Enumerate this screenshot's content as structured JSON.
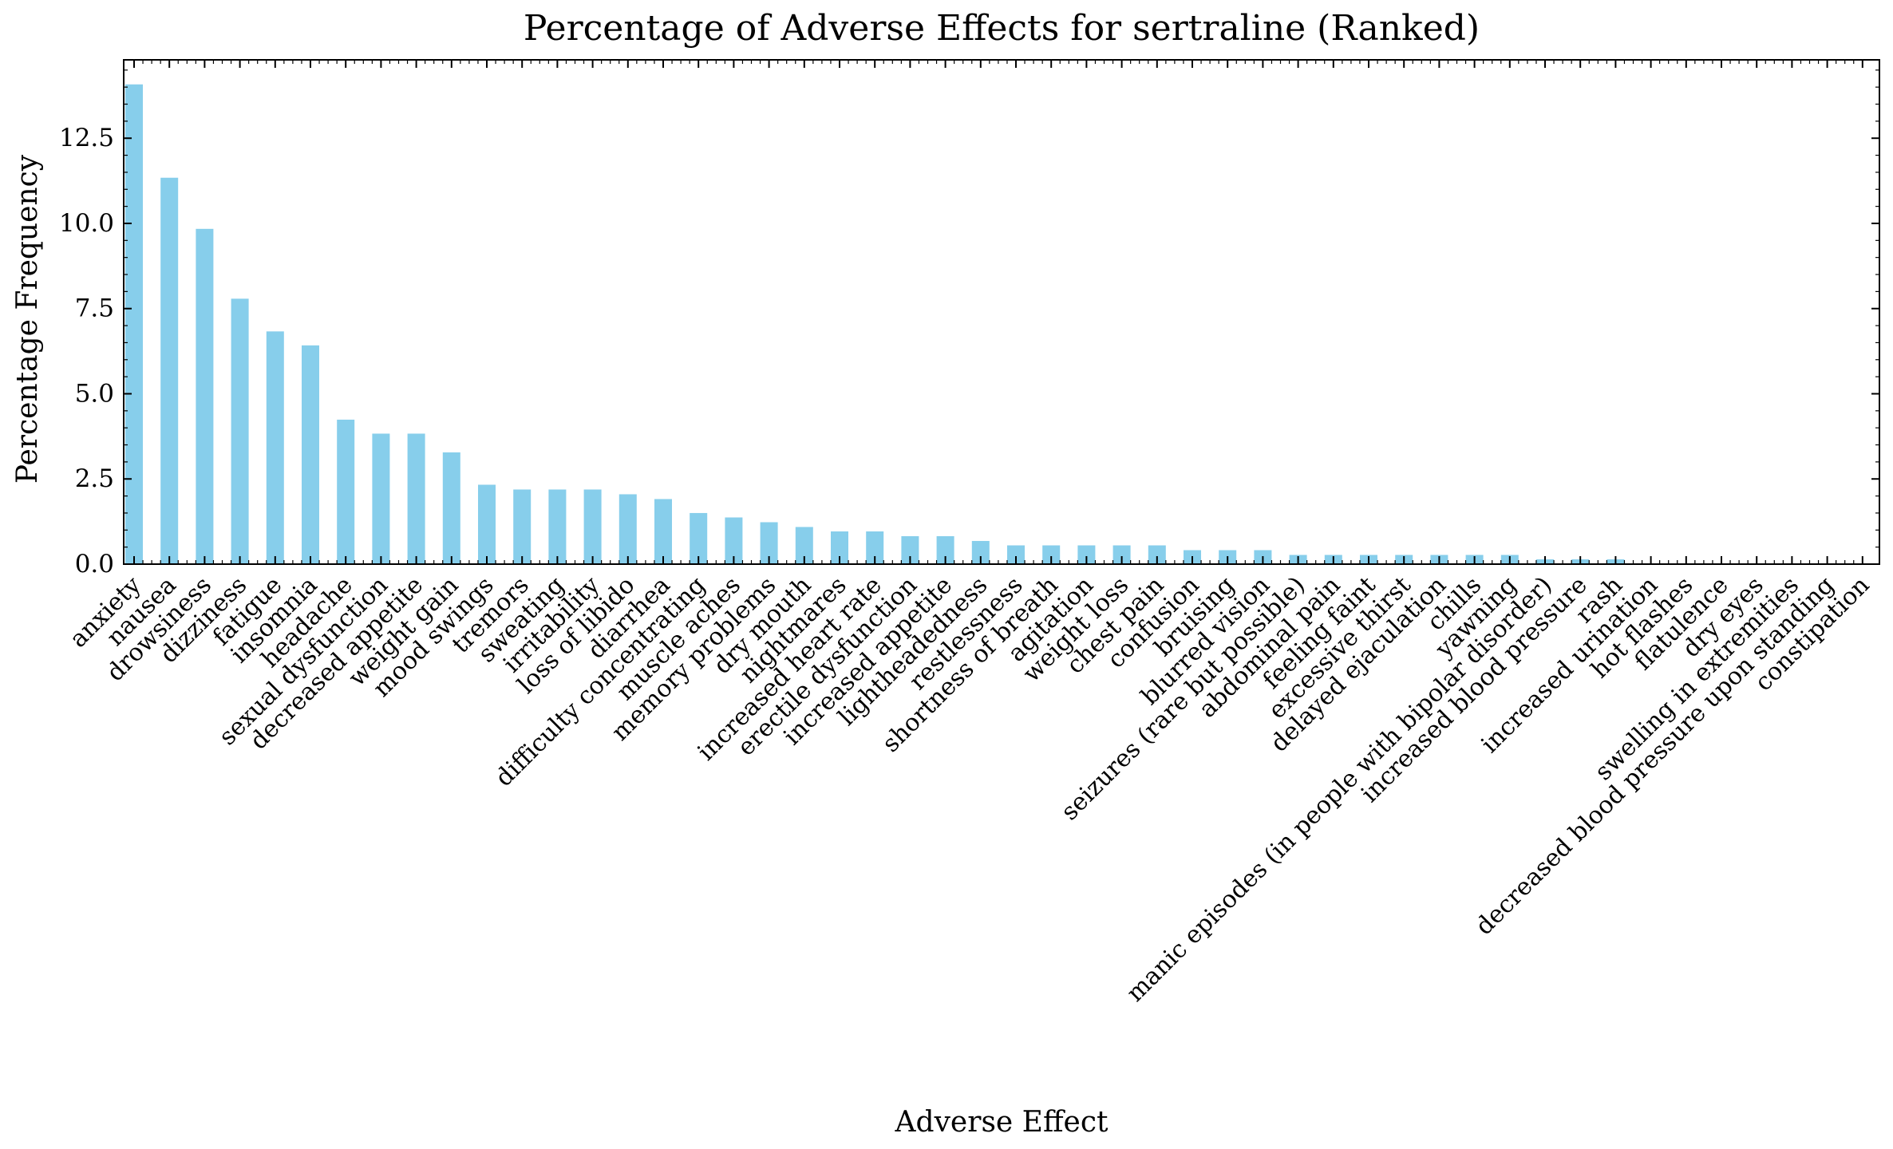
{
  "chart_data": {
    "type": "bar",
    "title": "Percentage of Adverse Effects for sertraline (Ranked)",
    "xlabel": "Adverse Effect",
    "ylabel": "Percentage Frequency",
    "ylim": [
      0,
      14.8
    ],
    "yticks": [
      0.0,
      2.5,
      5.0,
      7.5,
      10.0,
      12.5
    ],
    "ytick_labels": [
      "0.0",
      "2.5",
      "5.0",
      "7.5",
      "10.0",
      "12.5"
    ],
    "bar_color": "#87ceeb",
    "grid": false,
    "categories": [
      "anxiety",
      "nausea",
      "drowsiness",
      "dizziness",
      "fatigue",
      "insomnia",
      "headache",
      "sexual dysfunction",
      "decreased appetite",
      "weight gain",
      "mood swings",
      "tremors",
      "sweating",
      "irritability",
      "loss of libido",
      "diarrhea",
      "difficulty concentrating",
      "muscle aches",
      "memory problems",
      "dry mouth",
      "nightmares",
      "increased heart rate",
      "erectile dysfunction",
      "increased appetite",
      "lightheadedness",
      "restlessness",
      "shortness of breath",
      "agitation",
      "weight loss",
      "chest pain",
      "confusion",
      "bruising",
      "blurred vision",
      "seizures (rare but possible)",
      "abdominal pain",
      "feeling faint",
      "excessive thirst",
      "delayed ejaculation",
      "chills",
      "yawning",
      "manic episodes (in people with bipolar disorder)",
      "increased blood pressure",
      "rash",
      "increased urination",
      "hot flashes",
      "flatulence",
      "dry eyes",
      "swelling in extremities",
      "decreased blood pressure upon standing",
      "constipation"
    ],
    "values": [
      14.08,
      11.34,
      9.84,
      7.79,
      6.83,
      6.42,
      4.24,
      3.83,
      3.83,
      3.28,
      2.33,
      2.19,
      2.19,
      2.19,
      2.05,
      1.91,
      1.5,
      1.37,
      1.23,
      1.09,
      0.96,
      0.96,
      0.82,
      0.82,
      0.68,
      0.55,
      0.55,
      0.55,
      0.55,
      0.55,
      0.41,
      0.41,
      0.41,
      0.27,
      0.27,
      0.27,
      0.27,
      0.27,
      0.27,
      0.27,
      0.14,
      0.14,
      0.14,
      0.0,
      0.0,
      0.0,
      0.0,
      0.0,
      0.0,
      0.0
    ]
  }
}
